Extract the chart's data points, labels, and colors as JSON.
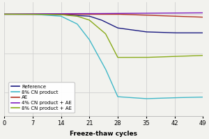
{
  "xlabel": "Freeze-thaw cycles",
  "xlim": [
    0,
    49
  ],
  "ylim": [
    0.48,
    1.06
  ],
  "xticks": [
    0,
    7,
    14,
    21,
    28,
    35,
    42,
    49
  ],
  "background_color": "#f2f2ee",
  "series": {
    "Reference": {
      "color": "#1a1a80",
      "x": [
        0,
        7,
        14,
        21,
        24,
        28,
        35,
        42,
        49
      ],
      "y": [
        1.0,
        1.0,
        0.998,
        0.99,
        0.97,
        0.93,
        0.91,
        0.905,
        0.905
      ]
    },
    "8% CN product": {
      "color": "#40b8c8",
      "x": [
        0,
        7,
        14,
        18,
        21,
        25,
        28,
        35,
        42,
        49
      ],
      "y": [
        1.0,
        1.0,
        0.99,
        0.95,
        0.87,
        0.72,
        0.58,
        0.57,
        0.575,
        0.578
      ]
    },
    "AE": {
      "color": "#b03020",
      "x": [
        0,
        7,
        14,
        21,
        28,
        35,
        42,
        49
      ],
      "y": [
        1.0,
        1.0,
        1.0,
        1.0,
        1.0,
        0.995,
        0.99,
        0.985
      ]
    },
    "4% CN product + AE": {
      "color": "#8020c0",
      "x": [
        0,
        7,
        14,
        21,
        28,
        35,
        42,
        49
      ],
      "y": [
        1.0,
        1.002,
        1.003,
        1.003,
        1.004,
        1.005,
        1.006,
        1.007
      ]
    },
    "8% CN product + AE": {
      "color": "#88aa18",
      "x": [
        0,
        7,
        14,
        18,
        21,
        25,
        28,
        35,
        42,
        49
      ],
      "y": [
        1.0,
        1.0,
        0.998,
        0.99,
        0.97,
        0.9,
        0.78,
        0.78,
        0.785,
        0.79
      ]
    }
  },
  "legend_order": [
    "Reference",
    "8% CN product",
    "AE",
    "4% CN product + AE",
    "8% CN product + AE"
  ]
}
